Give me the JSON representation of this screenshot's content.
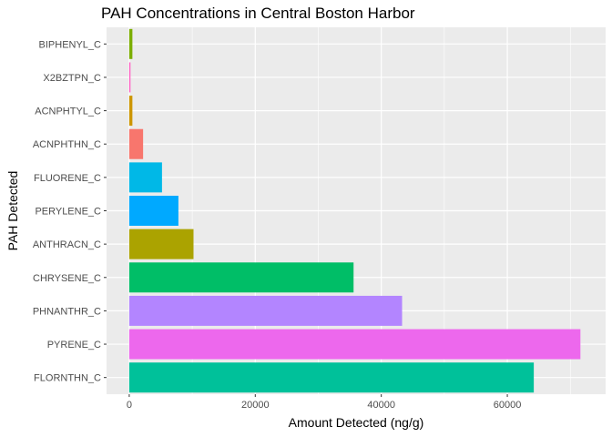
{
  "chart_data": {
    "type": "bar",
    "orientation": "horizontal",
    "title": "PAH Concentrations in Central Boston Harbor",
    "xlabel": "Amount Detected (ng/g)",
    "ylabel": "PAH Detected",
    "xlim": [
      -3600,
      75600
    ],
    "xticks": [
      0,
      20000,
      40000,
      60000
    ],
    "xtick_labels": [
      "0",
      "20000",
      "40000",
      "60000"
    ],
    "grid": true,
    "legend": "none",
    "background": "#EBEBEB",
    "categories": [
      "BIPHENYL_C",
      "X2BZTPN_C",
      "ACNPHTYL_C",
      "ACNPHTHN_C",
      "FLUORENE_C",
      "PERYLENE_C",
      "ANTHRACN_C",
      "CHRYSENE_C",
      "PHNANTHR_C",
      "PYRENE_C",
      "FLORNTHN_C"
    ],
    "values": [
      500,
      200,
      500,
      2200,
      5200,
      7800,
      10200,
      35600,
      43300,
      71600,
      64200
    ],
    "colors": [
      "#7CAE00",
      "#FF61C3",
      "#CD9600",
      "#F8766D",
      "#00B8E7",
      "#00A9FF",
      "#ABA300",
      "#00BE67",
      "#B385FF",
      "#ED68ED",
      "#00C19A"
    ]
  }
}
